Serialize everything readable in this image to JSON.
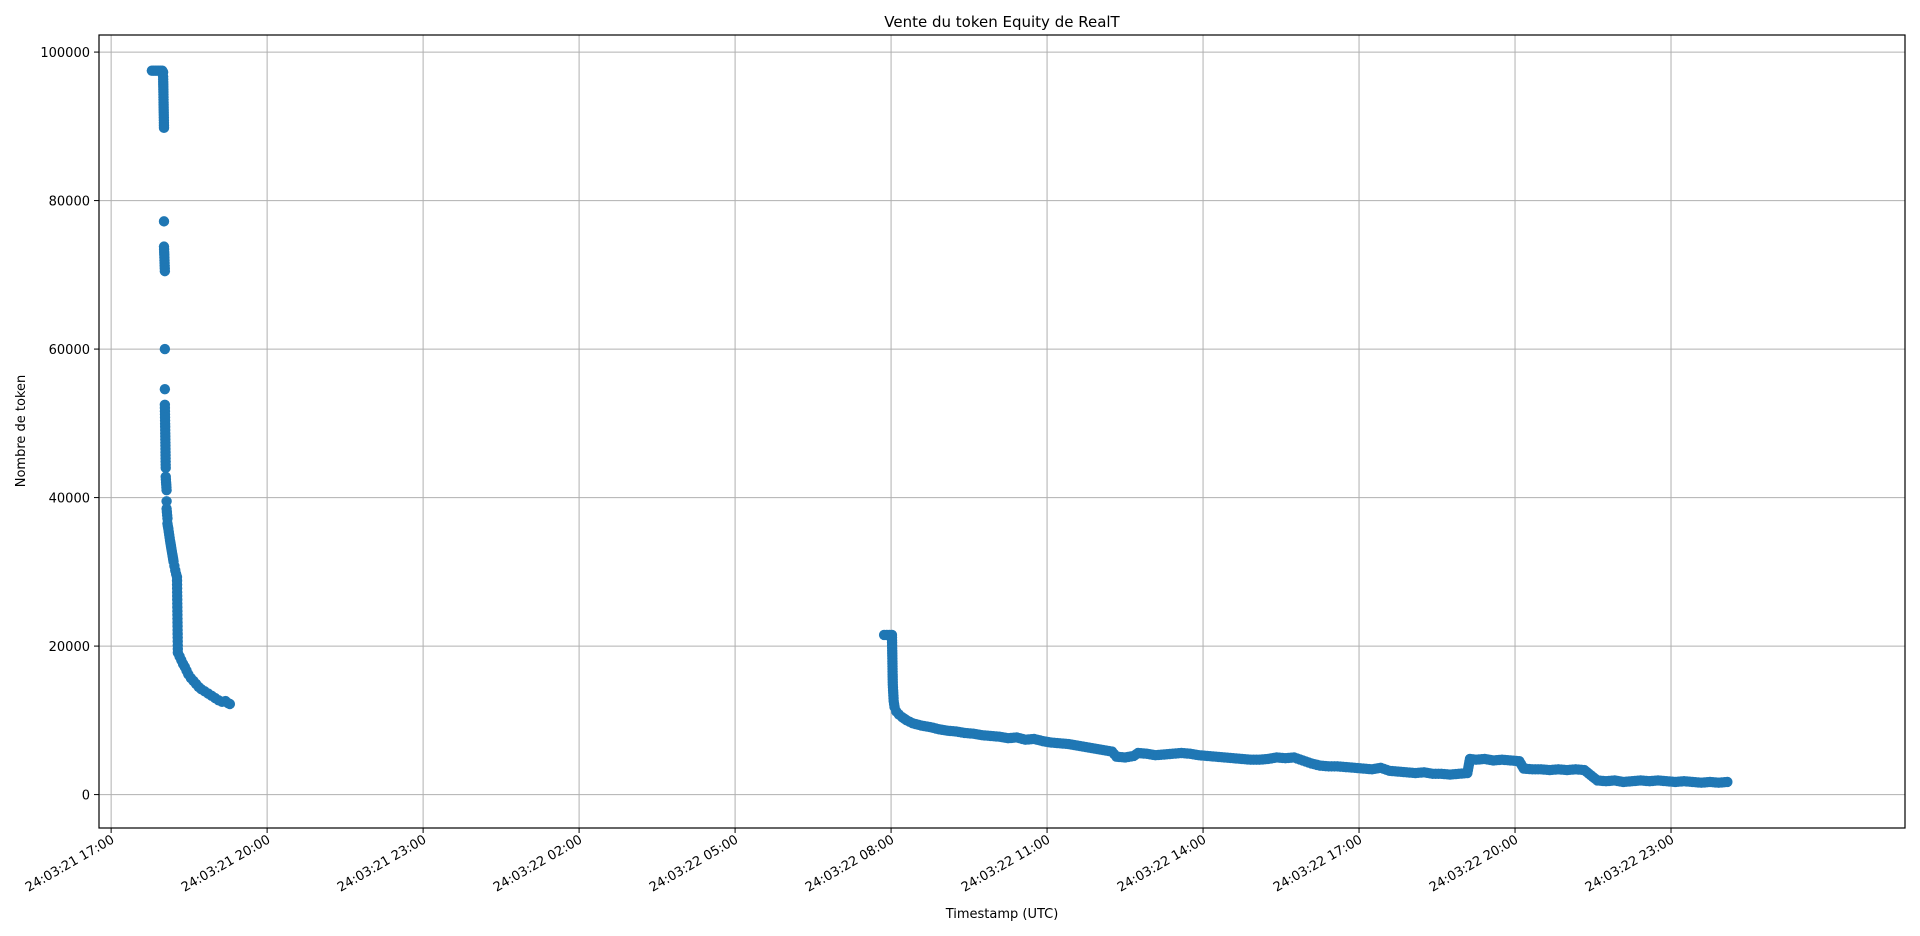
{
  "chart_data": {
    "type": "scatter",
    "title": "Vente du token Equity de RealT",
    "xlabel": "Timestamp (UTC)",
    "ylabel": "Nombre de token",
    "ylim": [
      -4500,
      102300
    ],
    "xlim": [
      "2024-03-21T16:46",
      "2024-03-23T03:30"
    ],
    "grid": true,
    "marker_color": "#1f77b4",
    "x_ticks": [
      {
        "t": "2024-03-21T17:00",
        "label": "24:03:21 17:00"
      },
      {
        "t": "2024-03-21T20:00",
        "label": "24:03:21 20:00"
      },
      {
        "t": "2024-03-21T23:00",
        "label": "24:03:21 23:00"
      },
      {
        "t": "2024-03-22T02:00",
        "label": "24:03:22 02:00"
      },
      {
        "t": "2024-03-22T05:00",
        "label": "24:03:22 05:00"
      },
      {
        "t": "2024-03-22T08:00",
        "label": "24:03:22 08:00"
      },
      {
        "t": "2024-03-22T11:00",
        "label": "24:03:22 11:00"
      },
      {
        "t": "2024-03-22T14:00",
        "label": "24:03:22 14:00"
      },
      {
        "t": "2024-03-22T17:00",
        "label": "24:03:22 17:00"
      },
      {
        "t": "2024-03-22T20:00",
        "label": "24:03:22 20:00"
      },
      {
        "t": "2024-03-22T23:00",
        "label": "24:03:22 23:00"
      }
    ],
    "y_ticks": [
      0,
      20000,
      40000,
      60000,
      80000,
      100000
    ],
    "points": [
      [
        "2024-03-21T17:47",
        97500
      ],
      [
        "2024-03-21T17:49",
        97500
      ],
      [
        "2024-03-21T17:51",
        97500
      ],
      [
        "2024-03-21T17:53",
        97500
      ],
      [
        "2024-03-21T17:55",
        97500
      ],
      [
        "2024-03-21T17:57",
        97500
      ],
      [
        "2024-03-21T17:59",
        97500
      ],
      [
        "2024-03-21T18:00",
        97300
      ],
      [
        "2024-03-21T18:00",
        96700
      ],
      [
        "2024-03-21T18:01",
        89800
      ],
      [
        "2024-03-21T18:01",
        77200
      ],
      [
        "2024-03-21T18:01",
        73800
      ],
      [
        "2024-03-21T18:02",
        70500
      ],
      [
        "2024-03-21T18:02",
        60000
      ],
      [
        "2024-03-21T18:02",
        54600
      ],
      [
        "2024-03-21T18:02",
        52500
      ],
      [
        "2024-03-21T18:03",
        44000
      ],
      [
        "2024-03-21T18:03",
        42800
      ],
      [
        "2024-03-21T18:04",
        41000
      ],
      [
        "2024-03-21T18:04",
        39500
      ],
      [
        "2024-03-21T18:04",
        38500
      ],
      [
        "2024-03-21T18:05",
        37200
      ],
      [
        "2024-03-21T18:05",
        36500
      ],
      [
        "2024-03-21T18:06",
        35800
      ],
      [
        "2024-03-21T18:07",
        35000
      ],
      [
        "2024-03-21T18:08",
        34200
      ],
      [
        "2024-03-21T18:09",
        33500
      ],
      [
        "2024-03-21T18:10",
        32800
      ],
      [
        "2024-03-21T18:11",
        32100
      ],
      [
        "2024-03-21T18:12",
        31400
      ],
      [
        "2024-03-21T18:13",
        30800
      ],
      [
        "2024-03-21T18:14",
        30200
      ],
      [
        "2024-03-21T18:15",
        29700
      ],
      [
        "2024-03-21T18:16",
        29300
      ],
      [
        "2024-03-21T18:17",
        19100
      ],
      [
        "2024-03-21T18:19",
        18600
      ],
      [
        "2024-03-21T18:21",
        18100
      ],
      [
        "2024-03-21T18:23",
        17600
      ],
      [
        "2024-03-21T18:25",
        17200
      ],
      [
        "2024-03-21T18:27",
        16700
      ],
      [
        "2024-03-21T18:29",
        16200
      ],
      [
        "2024-03-21T18:32",
        15700
      ],
      [
        "2024-03-21T18:35",
        15300
      ],
      [
        "2024-03-21T18:38",
        14900
      ],
      [
        "2024-03-21T18:41",
        14500
      ],
      [
        "2024-03-21T18:44",
        14200
      ],
      [
        "2024-03-21T18:48",
        13900
      ],
      [
        "2024-03-21T18:52",
        13600
      ],
      [
        "2024-03-21T18:56",
        13300
      ],
      [
        "2024-03-21T19:00",
        13000
      ],
      [
        "2024-03-21T19:04",
        12700
      ],
      [
        "2024-03-21T19:08",
        12500
      ],
      [
        "2024-03-21T19:12",
        12600
      ],
      [
        "2024-03-21T19:15",
        12300
      ],
      [
        "2024-03-21T19:17",
        12200
      ],
      [
        "2024-03-22T07:52",
        21500
      ],
      [
        "2024-03-22T07:55",
        21500
      ],
      [
        "2024-03-22T07:58",
        21500
      ],
      [
        "2024-03-22T08:01",
        21500
      ],
      [
        "2024-03-22T08:02",
        14800
      ],
      [
        "2024-03-22T08:03",
        12600
      ],
      [
        "2024-03-22T08:04",
        11800
      ],
      [
        "2024-03-22T08:06",
        11200
      ],
      [
        "2024-03-22T08:09",
        10800
      ],
      [
        "2024-03-22T08:13",
        10400
      ],
      [
        "2024-03-22T08:18",
        10000
      ],
      [
        "2024-03-22T08:25",
        9600
      ],
      [
        "2024-03-22T08:35",
        9300
      ],
      [
        "2024-03-22T08:45",
        9100
      ],
      [
        "2024-03-22T08:55",
        8800
      ],
      [
        "2024-03-22T09:05",
        8600
      ],
      [
        "2024-03-22T09:15",
        8500
      ],
      [
        "2024-03-22T09:25",
        8300
      ],
      [
        "2024-03-22T09:35",
        8200
      ],
      [
        "2024-03-22T09:45",
        8000
      ],
      [
        "2024-03-22T09:55",
        7900
      ],
      [
        "2024-03-22T10:05",
        7800
      ],
      [
        "2024-03-22T10:15",
        7600
      ],
      [
        "2024-03-22T10:25",
        7700
      ],
      [
        "2024-03-22T10:35",
        7400
      ],
      [
        "2024-03-22T10:45",
        7500
      ],
      [
        "2024-03-22T10:55",
        7200
      ],
      [
        "2024-03-22T11:05",
        7000
      ],
      [
        "2024-03-22T11:15",
        6900
      ],
      [
        "2024-03-22T11:25",
        6800
      ],
      [
        "2024-03-22T11:35",
        6600
      ],
      [
        "2024-03-22T11:45",
        6400
      ],
      [
        "2024-03-22T11:55",
        6200
      ],
      [
        "2024-03-22T12:05",
        6000
      ],
      [
        "2024-03-22T12:15",
        5800
      ],
      [
        "2024-03-22T12:20",
        5100
      ],
      [
        "2024-03-22T12:30",
        5000
      ],
      [
        "2024-03-22T12:40",
        5200
      ],
      [
        "2024-03-22T12:45",
        5600
      ],
      [
        "2024-03-22T12:55",
        5500
      ],
      [
        "2024-03-22T13:05",
        5300
      ],
      [
        "2024-03-22T13:15",
        5400
      ],
      [
        "2024-03-22T13:25",
        5500
      ],
      [
        "2024-03-22T13:35",
        5600
      ],
      [
        "2024-03-22T13:45",
        5500
      ],
      [
        "2024-03-22T13:55",
        5300
      ],
      [
        "2024-03-22T14:05",
        5200
      ],
      [
        "2024-03-22T14:15",
        5100
      ],
      [
        "2024-03-22T14:25",
        5000
      ],
      [
        "2024-03-22T14:35",
        4900
      ],
      [
        "2024-03-22T14:45",
        4800
      ],
      [
        "2024-03-22T14:55",
        4700
      ],
      [
        "2024-03-22T15:05",
        4700
      ],
      [
        "2024-03-22T15:15",
        4800
      ],
      [
        "2024-03-22T15:25",
        5000
      ],
      [
        "2024-03-22T15:35",
        4900
      ],
      [
        "2024-03-22T15:45",
        5000
      ],
      [
        "2024-03-22T15:55",
        4600
      ],
      [
        "2024-03-22T16:05",
        4200
      ],
      [
        "2024-03-22T16:15",
        3900
      ],
      [
        "2024-03-22T16:25",
        3800
      ],
      [
        "2024-03-22T16:35",
        3800
      ],
      [
        "2024-03-22T16:45",
        3700
      ],
      [
        "2024-03-22T16:55",
        3600
      ],
      [
        "2024-03-22T17:05",
        3500
      ],
      [
        "2024-03-22T17:15",
        3400
      ],
      [
        "2024-03-22T17:25",
        3600
      ],
      [
        "2024-03-22T17:35",
        3200
      ],
      [
        "2024-03-22T17:45",
        3100
      ],
      [
        "2024-03-22T17:55",
        3000
      ],
      [
        "2024-03-22T18:05",
        2900
      ],
      [
        "2024-03-22T18:15",
        3000
      ],
      [
        "2024-03-22T18:25",
        2800
      ],
      [
        "2024-03-22T18:35",
        2800
      ],
      [
        "2024-03-22T18:45",
        2700
      ],
      [
        "2024-03-22T18:55",
        2800
      ],
      [
        "2024-03-22T19:05",
        2900
      ],
      [
        "2024-03-22T19:08",
        4800
      ],
      [
        "2024-03-22T19:15",
        4700
      ],
      [
        "2024-03-22T19:25",
        4800
      ],
      [
        "2024-03-22T19:35",
        4600
      ],
      [
        "2024-03-22T19:45",
        4700
      ],
      [
        "2024-03-22T19:55",
        4600
      ],
      [
        "2024-03-22T20:05",
        4500
      ],
      [
        "2024-03-22T20:10",
        3500
      ],
      [
        "2024-03-22T20:20",
        3400
      ],
      [
        "2024-03-22T20:30",
        3400
      ],
      [
        "2024-03-22T20:40",
        3300
      ],
      [
        "2024-03-22T20:50",
        3400
      ],
      [
        "2024-03-22T21:00",
        3300
      ],
      [
        "2024-03-22T21:10",
        3400
      ],
      [
        "2024-03-22T21:20",
        3300
      ],
      [
        "2024-03-22T21:35",
        1900
      ],
      [
        "2024-03-22T21:45",
        1800
      ],
      [
        "2024-03-22T21:55",
        1900
      ],
      [
        "2024-03-22T22:05",
        1700
      ],
      [
        "2024-03-22T22:15",
        1800
      ],
      [
        "2024-03-22T22:25",
        1900
      ],
      [
        "2024-03-22T22:35",
        1800
      ],
      [
        "2024-03-22T22:45",
        1900
      ],
      [
        "2024-03-22T22:55",
        1800
      ],
      [
        "2024-03-22T23:05",
        1700
      ],
      [
        "2024-03-22T23:15",
        1800
      ],
      [
        "2024-03-22T23:25",
        1700
      ],
      [
        "2024-03-22T23:35",
        1600
      ],
      [
        "2024-03-22T23:45",
        1700
      ],
      [
        "2024-03-22T23:55",
        1600
      ],
      [
        "2024-03-23T00:05",
        1700
      ],
      [
        "2024-03-22T00:00",
        null
      ]
    ]
  }
}
